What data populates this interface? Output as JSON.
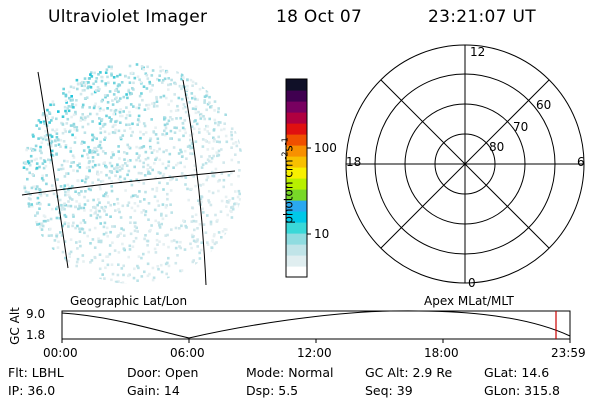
{
  "header": {
    "instrument": "Ultraviolet Imager",
    "date": "18 Oct 07",
    "time": "23:21:07 UT"
  },
  "colorbar": {
    "unit_label": "photon cm",
    "unit_sup1": "-2",
    "unit_mid": "s",
    "unit_sup2": "-1",
    "ticks": [
      "100",
      "10"
    ],
    "colors": [
      "#ffffff",
      "#e0eef0",
      "#c0e4e8",
      "#8fdce0",
      "#3ad8d8",
      "#00c8e8",
      "#2aa8f0",
      "#78d828",
      "#b8f000",
      "#f8f000",
      "#f8c000",
      "#f89000",
      "#f05000",
      "#e01010",
      "#b00040",
      "#780060",
      "#400050",
      "#101028"
    ]
  },
  "labels": {
    "left_map": "Geographic Lat/Lon",
    "right_map": "Apex MLat/MLT"
  },
  "polar": {
    "mlt_labels": {
      "top": "12",
      "left": "18",
      "right": "6",
      "bottom": "0"
    },
    "lat_labels": [
      "60",
      "70",
      "80"
    ]
  },
  "altitude_plot": {
    "axis_label": "GC Alt",
    "y_top": "9.0",
    "y_bottom": "1.8",
    "x_ticks": [
      "00:00",
      "06:00",
      "12:00",
      "18:00",
      "23:59"
    ],
    "current_marker_color": "#cc0000"
  },
  "footer": [
    {
      "key": "flt",
      "text": "Flt: LBHL"
    },
    {
      "key": "door",
      "text": "Door: Open"
    },
    {
      "key": "mode",
      "text": "Mode: Normal"
    },
    {
      "key": "gcalt",
      "text": "GC Alt: 2.9 Re"
    },
    {
      "key": "glat",
      "text": "GLat:  14.6"
    },
    {
      "key": "ip",
      "text": "IP: 36.0"
    },
    {
      "key": "gain",
      "text": "Gain: 14"
    },
    {
      "key": "dsp",
      "text": "Dsp:    5.5"
    },
    {
      "key": "seq",
      "text": "Seq: 39"
    },
    {
      "key": "glon",
      "text": "GLon: 315.8"
    }
  ]
}
